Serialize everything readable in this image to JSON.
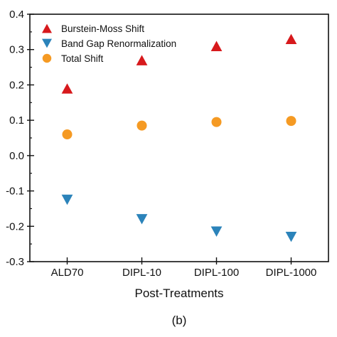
{
  "chart_data": {
    "type": "scatter",
    "title": "",
    "xlabel": "Post-Treatments",
    "ylabel": "",
    "caption": "(b)",
    "categories": [
      "ALD70",
      "DIPL-10",
      "DIPL-100",
      "DIPL-1000"
    ],
    "ylim": [
      -0.3,
      0.4
    ],
    "yticks": [
      -0.3,
      -0.2,
      -0.1,
      0.0,
      0.1,
      0.2,
      0.3,
      0.4
    ],
    "ytick_labels": [
      "-0.3",
      "-0.2",
      "-0.1",
      "0.0",
      "0.1",
      "0.2",
      "0.3",
      "0.4"
    ],
    "grid": false,
    "legend_position": "top-left",
    "series": [
      {
        "name": "Burstein-Moss Shift",
        "marker": "triangle-up",
        "color": "#d7191c",
        "values": [
          0.19,
          0.27,
          0.31,
          0.33
        ]
      },
      {
        "name": "Band Gap Renormalization",
        "marker": "triangle-down",
        "color": "#2b83ba",
        "values": [
          -0.125,
          -0.18,
          -0.215,
          -0.23
        ]
      },
      {
        "name": "Total Shift",
        "marker": "circle",
        "color": "#f59a23",
        "values": [
          0.06,
          0.085,
          0.095,
          0.098
        ]
      }
    ]
  }
}
